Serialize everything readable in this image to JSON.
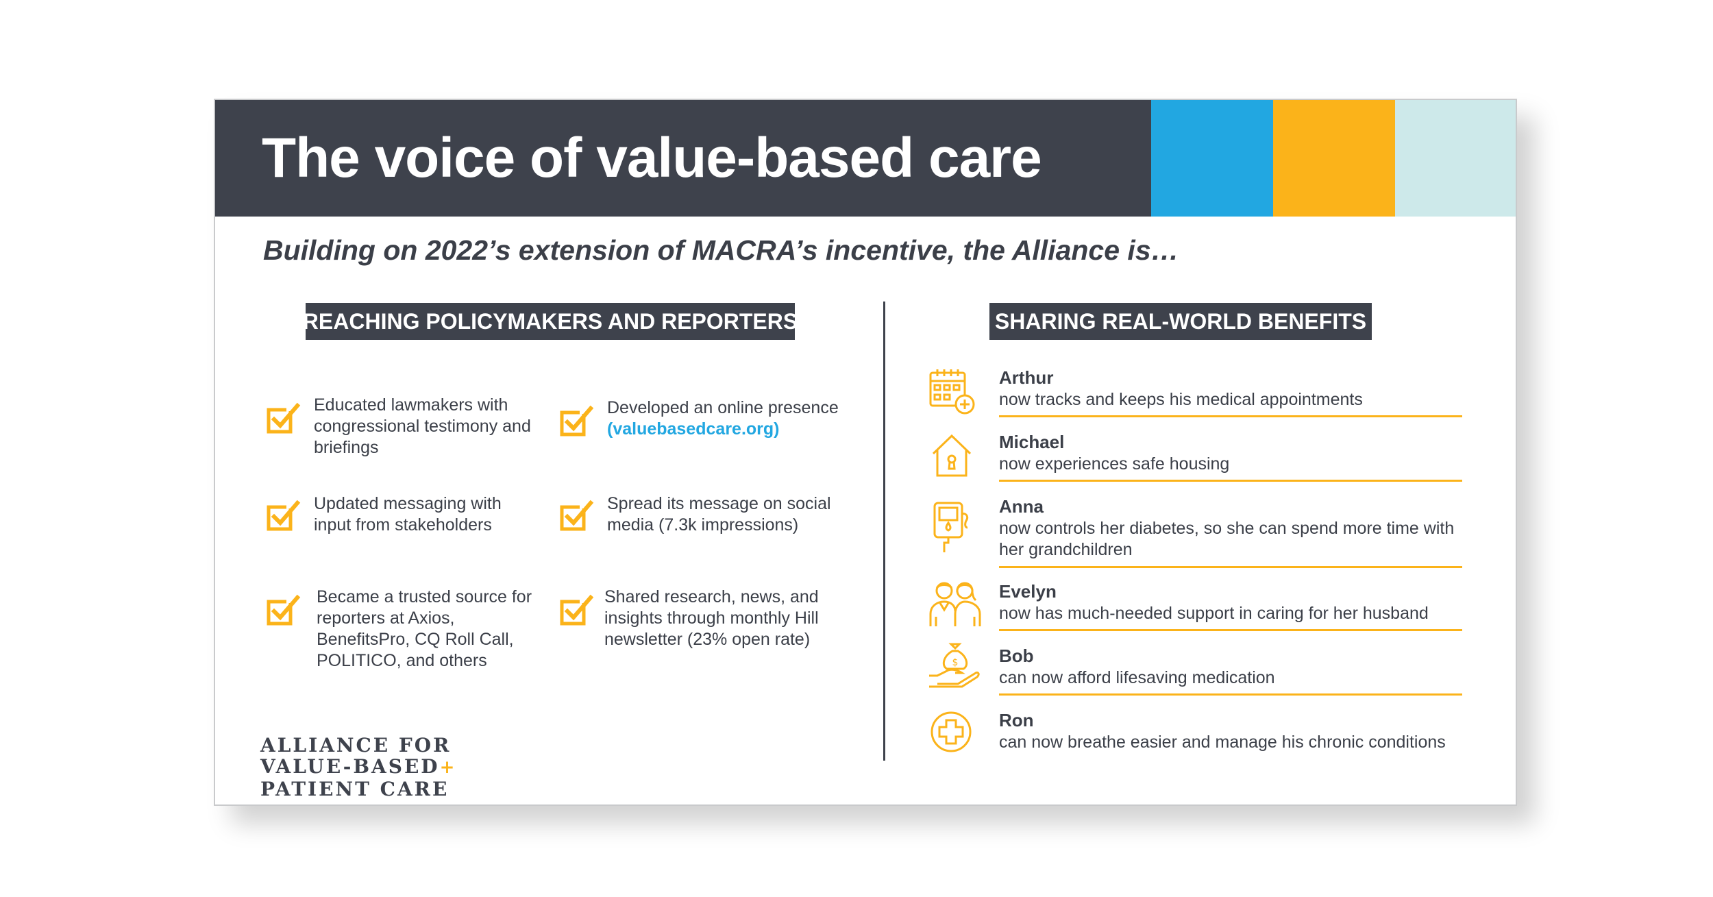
{
  "header": {
    "title": "The voice of value-based care",
    "colors": [
      "#22a7e1",
      "#fbb31a",
      "#cde9ea"
    ]
  },
  "subtitle": "Building on 2022’s extension of MACRA’s incentive, the Alliance is…",
  "left_section": {
    "heading": "REACHING POLICYMAKERS AND REPORTERS",
    "items": [
      {
        "text": "Educated lawmakers with congressional testimony and briefings"
      },
      {
        "text": "Developed an online presence",
        "link": "(valuebasedcare.org)"
      },
      {
        "text": "Updated messaging with input from stakeholders"
      },
      {
        "text": "Spread its message on social media (7.3k impressions)"
      },
      {
        "text": "Became a trusted source for reporters at Axios, BenefitsPro, CQ Roll Call, POLITICO, and others"
      },
      {
        "text": "Shared research, news, and insights through monthly Hill newsletter (23% open rate)"
      }
    ],
    "icon": "checkbox-icon"
  },
  "right_section": {
    "heading": "SHARING REAL-WORLD BENEFITS",
    "people": [
      {
        "name": "Arthur",
        "desc": "now tracks and keeps his medical appointments",
        "icon": "calendar-plus-icon"
      },
      {
        "name": "Michael",
        "desc": "now experiences safe housing",
        "icon": "house-icon"
      },
      {
        "name": "Anna",
        "desc": "now controls her diabetes, so she can spend more time with her grandchildren",
        "icon": "glucose-meter-icon"
      },
      {
        "name": "Evelyn",
        "desc": "now has much-needed support in caring for her husband",
        "icon": "couple-icon"
      },
      {
        "name": "Bob",
        "desc": "can now afford lifesaving medication",
        "icon": "hand-money-bag-icon"
      },
      {
        "name": "Ron",
        "desc": "can now breathe easier and manage his chronic conditions",
        "icon": "medical-cross-icon"
      }
    ]
  },
  "logo": {
    "line1": "ALLIANCE FOR",
    "line2": "VALUE-BASED",
    "line3": "PATIENT CARE"
  },
  "colors": {
    "dark": "#3e424c",
    "blue": "#22a7e1",
    "gold": "#fbb31a",
    "mint": "#cde9ea"
  }
}
